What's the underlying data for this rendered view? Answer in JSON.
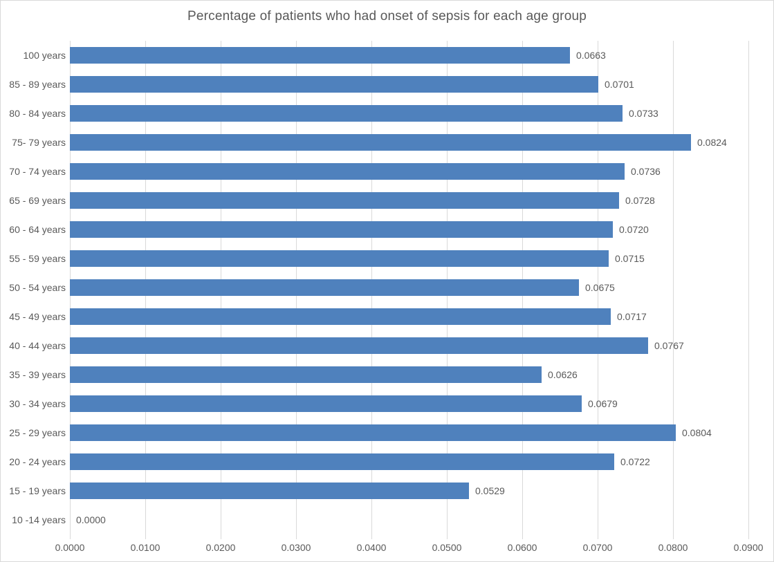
{
  "chart_data": {
    "type": "bar",
    "orientation": "horizontal",
    "title": "Percentage of patients who had onset of sepsis for each age group",
    "categories": [
      "100 years",
      "85 - 89 years",
      "80 - 84 years",
      "75- 79 years",
      "70 - 74 years",
      "65 - 69 years",
      "60 - 64 years",
      "55 - 59 years",
      "50 - 54 years",
      "45 - 49 years",
      "40 - 44 years",
      "35 - 39 years",
      "30 - 34 years",
      "25 - 29 years",
      "20 - 24 years",
      "15 - 19 years",
      "10 -14 years"
    ],
    "values": [
      0.0663,
      0.0701,
      0.0733,
      0.0824,
      0.0736,
      0.0728,
      0.072,
      0.0715,
      0.0675,
      0.0717,
      0.0767,
      0.0626,
      0.0679,
      0.0804,
      0.0722,
      0.0529,
      0.0
    ],
    "value_labels": [
      "0.0663",
      "0.0701",
      "0.0733",
      "0.0824",
      "0.0736",
      "0.0728",
      "0.0720",
      "0.0715",
      "0.0675",
      "0.0717",
      "0.0767",
      "0.0626",
      "0.0679",
      "0.0804",
      "0.0722",
      "0.0529",
      "0.0000"
    ],
    "x_ticks": [
      "0.0000",
      "0.0100",
      "0.0200",
      "0.0300",
      "0.0400",
      "0.0500",
      "0.0600",
      "0.0700",
      "0.0800",
      "0.0900"
    ],
    "xlim": [
      0,
      0.09
    ],
    "xlabel": "",
    "ylabel": "",
    "legend": "none",
    "grid": "vertical-gridlines",
    "colors": {
      "bar": "#4F81BD",
      "gridline": "#D9D9D9",
      "axis_text": "#595959",
      "value_text": "#595959",
      "title_text": "#595959",
      "background": "#FFFFFF"
    }
  }
}
